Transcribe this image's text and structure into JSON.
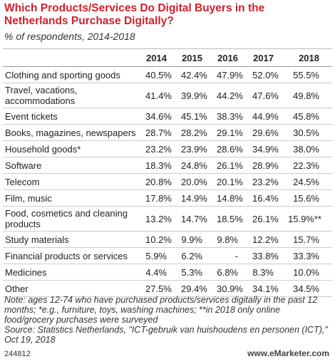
{
  "header": {
    "title": "Which Products/Services Do Digital Buyers in the Netherlands Purchase Digitally?",
    "subtitle": "% of respondents, 2014-2018"
  },
  "table": {
    "columns": [
      "2014",
      "2015",
      "2016",
      "2017",
      "2018"
    ],
    "rows": [
      [
        "Clothing and sporting goods",
        "40.5%",
        "42.4%",
        "47.9%",
        "52.0%",
        "55.5%"
      ],
      [
        "Travel, vacations, accommodations",
        "41.4%",
        "39.9%",
        "44.2%",
        "47.6%",
        "49.8%"
      ],
      [
        "Event tickets",
        "34.6%",
        "45.1%",
        "38.3%",
        "44.9%",
        "45.8%"
      ],
      [
        "Books, magazines, newspapers",
        "28.7%",
        "28.2%",
        "29.1%",
        "29.6%",
        "30.5%"
      ],
      [
        "Household goods*",
        "23.2%",
        "23.9%",
        "28.6%",
        "34.9%",
        "38.0%"
      ],
      [
        "Software",
        "18.3%",
        "24.8%",
        "26.1%",
        "28.9%",
        "22.3%"
      ],
      [
        "Telecom",
        "20.8%",
        "20.0%",
        "20.1%",
        "23.2%",
        "24.5%"
      ],
      [
        "Film, music",
        "17.8%",
        "14.9%",
        "14.8%",
        "16.4%",
        "15.6%"
      ],
      [
        "Food, cosmetics and cleaning products",
        "13.2%",
        "14.7%",
        "18.5%",
        "26.1%",
        "15.9%**"
      ],
      [
        "Study materials",
        "10.2%",
        "9.9%",
        "9.8%",
        "12.2%",
        "15.7%"
      ],
      [
        "Financial products or services",
        "5.9%",
        "6.2%",
        "-",
        "33.8%",
        "33.3%"
      ],
      [
        "Medicines",
        "4.4%",
        "5.3%",
        "6.8%",
        "8.3%",
        "10.0%"
      ],
      [
        "Other",
        "27.5%",
        "29.4%",
        "30.9%",
        "34.1%",
        "34.5%"
      ]
    ]
  },
  "notes": [
    "Note: ages 12-74 who have purchased products/services digitally in the past 12 months; *e.g., furniture, toys, washing machines; **in 2018 only online food/grocery purchases were surveyed",
    "Source: Statistics Netherlands, \"ICT-gebruik van huishoudens en personen (ICT),\" Oct 19, 2018"
  ],
  "footer": {
    "id": "244812",
    "brand": "www.eMarketer.com"
  }
}
